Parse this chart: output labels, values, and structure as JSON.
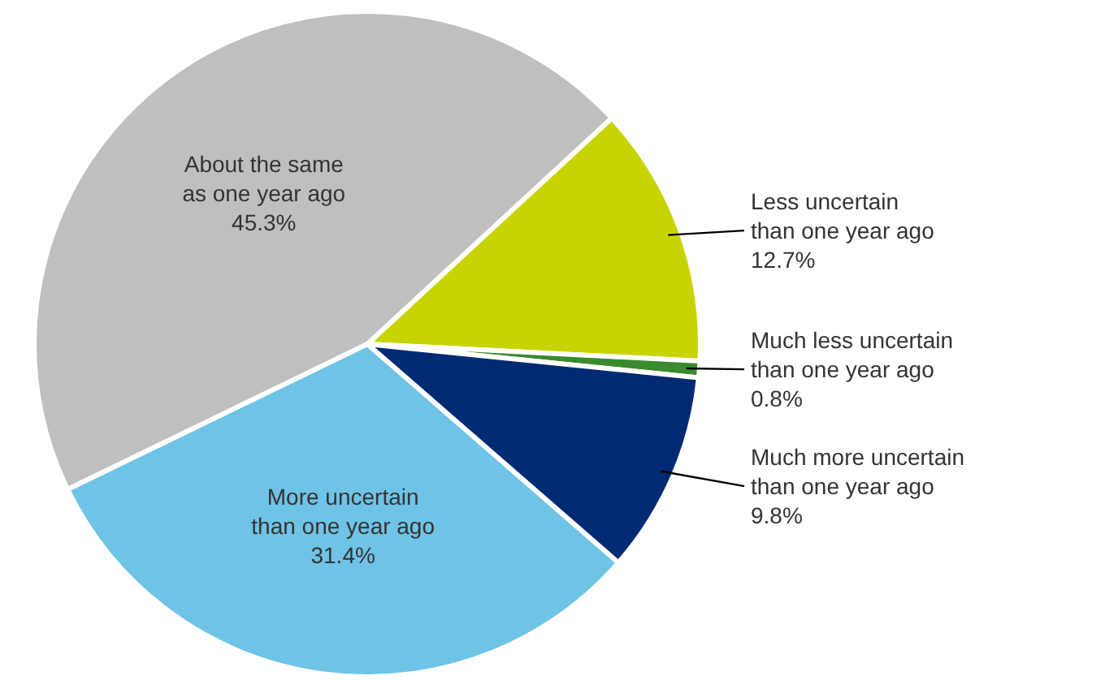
{
  "chart_data": {
    "type": "pie",
    "categories": [
      "Less uncertain\nthan one year ago",
      "Much less uncertain\nthan one year ago",
      "Much more uncertain\nthan one year ago",
      "More uncertain\nthan one year ago",
      "About the same\nas one year ago"
    ],
    "values": [
      12.7,
      0.8,
      9.8,
      31.4,
      45.3
    ],
    "value_labels": [
      "12.7%",
      "0.8%",
      "9.8%",
      "31.4%",
      "45.3%"
    ],
    "colors": [
      "#c8d400",
      "#3a8a2e",
      "#002b73",
      "#6fc3e6",
      "#bfbfbf"
    ]
  }
}
